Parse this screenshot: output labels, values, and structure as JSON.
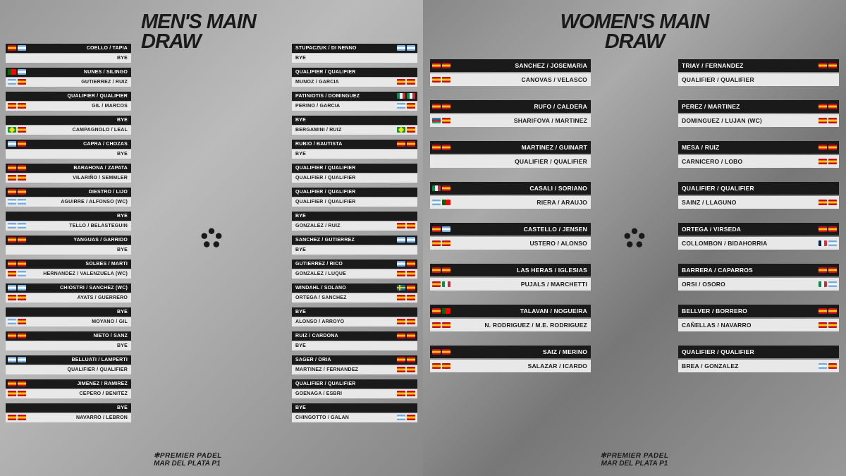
{
  "titles": {
    "men": "MEN'S MAIN\nDRAW",
    "women": "WOMEN'S MAIN DRAW"
  },
  "footer": {
    "brand": "✻PREMIER PADEL",
    "event": "MAR DEL PLATA P1"
  },
  "men_left": [
    [
      {
        "t": "COELLO / TAPIA",
        "f": [
          "es",
          "ar"
        ],
        "d": 1
      },
      {
        "t": "BYE",
        "d": 0
      }
    ],
    [
      {
        "t": "NUNES / SILINGO",
        "f": [
          "pt",
          "ar"
        ],
        "d": 1
      },
      {
        "t": "GUTIERREZ / RUIZ",
        "f": [
          "ar",
          "es"
        ],
        "d": 0
      }
    ],
    [
      {
        "t": "QUALIFIER / QUALIFIER",
        "d": 1
      },
      {
        "t": "GIL / MARCOS",
        "f": [
          "es",
          "es"
        ],
        "d": 0
      }
    ],
    [
      {
        "t": "BYE",
        "d": 1
      },
      {
        "t": "CAMPAGNOLO / LEAL",
        "f": [
          "br",
          "es"
        ],
        "d": 0
      }
    ],
    [
      {
        "t": "CAPRA / CHOZAS",
        "f": [
          "ar",
          "es"
        ],
        "d": 1
      },
      {
        "t": "BYE",
        "d": 0
      }
    ],
    [
      {
        "t": "BARAHONA / ZAPATA",
        "f": [
          "es",
          "es"
        ],
        "d": 1
      },
      {
        "t": "VILARIÑO / SEMMLER",
        "f": [
          "es",
          "es"
        ],
        "d": 0
      }
    ],
    [
      {
        "t": "DIESTRO / LIJO",
        "f": [
          "es",
          "es"
        ],
        "d": 1
      },
      {
        "t": "AGUIRRE / ALFONSO (WC)",
        "f": [
          "ar",
          "ar"
        ],
        "d": 0
      }
    ],
    [
      {
        "t": "BYE",
        "d": 1
      },
      {
        "t": "TELLO / BELASTEGUIN",
        "f": [
          "ar",
          "ar"
        ],
        "d": 0
      }
    ],
    [
      {
        "t": "YANGUAS / GARRIDO",
        "f": [
          "es",
          "es"
        ],
        "d": 1
      },
      {
        "t": "BYE",
        "d": 0
      }
    ],
    [
      {
        "t": "SOLBES / MARTI",
        "f": [
          "es",
          "es"
        ],
        "d": 1
      },
      {
        "t": "HERNANDEZ / VALENZUELA (WC)",
        "f": [
          "es",
          "ar"
        ],
        "d": 0
      }
    ],
    [
      {
        "t": "CHIOSTRI / SANCHEZ (WC)",
        "f": [
          "ar",
          "ar"
        ],
        "d": 1
      },
      {
        "t": "AYATS / GUERRERO",
        "f": [
          "es",
          "es"
        ],
        "d": 0
      }
    ],
    [
      {
        "t": "BYE",
        "d": 1
      },
      {
        "t": "MOYANO / GIL",
        "f": [
          "ar",
          "es"
        ],
        "d": 0
      }
    ],
    [
      {
        "t": "NIETO / SANZ",
        "f": [
          "es",
          "es"
        ],
        "d": 1
      },
      {
        "t": "BYE",
        "d": 0
      }
    ],
    [
      {
        "t": "BELLUATI / LAMPERTI",
        "f": [
          "ar",
          "ar"
        ],
        "d": 1
      },
      {
        "t": "QUALIFIER / QUALIFIER",
        "d": 0
      }
    ],
    [
      {
        "t": "JIMENEZ / RAMIREZ",
        "f": [
          "es",
          "es"
        ],
        "d": 1
      },
      {
        "t": "CEPERO / BENITEZ",
        "f": [
          "es",
          "es"
        ],
        "d": 0
      }
    ],
    [
      {
        "t": "BYE",
        "d": 1
      },
      {
        "t": "NAVARRO / LEBRON",
        "f": [
          "es",
          "es"
        ],
        "d": 0
      }
    ]
  ],
  "men_right": [
    [
      {
        "t": "STUPACZUK / DI NENNO",
        "f": [
          "ar",
          "ar"
        ],
        "d": 1
      },
      {
        "t": "BYE",
        "d": 0
      }
    ],
    [
      {
        "t": "QUALIFIER / QUALIFIER",
        "d": 1
      },
      {
        "t": "MUNOZ / GARCIA",
        "f": [
          "es",
          "es"
        ],
        "d": 0
      }
    ],
    [
      {
        "t": "PATINIOTIS / DOMINGUEZ",
        "f": [
          "it",
          "it"
        ],
        "d": 1
      },
      {
        "t": "PERINO / GARCIA",
        "f": [
          "ar",
          "es"
        ],
        "d": 0
      }
    ],
    [
      {
        "t": "BYE",
        "d": 1
      },
      {
        "t": "BERGAMINI / RUIZ",
        "f": [
          "br",
          "es"
        ],
        "d": 0
      }
    ],
    [
      {
        "t": "RUBIO / BAUTISTA",
        "f": [
          "es",
          "es"
        ],
        "d": 1
      },
      {
        "t": "BYE",
        "d": 0
      }
    ],
    [
      {
        "t": "QUALIFIER / QUALIFIER",
        "d": 1
      },
      {
        "t": "QUALIFIER / QUALIFIER",
        "d": 0
      }
    ],
    [
      {
        "t": "QUALIFIER / QUALIFIER",
        "d": 1
      },
      {
        "t": "QUALIFIER / QUALIFIER",
        "d": 0
      }
    ],
    [
      {
        "t": "BYE",
        "d": 1
      },
      {
        "t": "GONZALEZ / RUIZ",
        "f": [
          "es",
          "es"
        ],
        "d": 0
      }
    ],
    [
      {
        "t": "SANCHEZ / GUTIERREZ",
        "f": [
          "ar",
          "ar"
        ],
        "d": 1
      },
      {
        "t": "BYE",
        "d": 0
      }
    ],
    [
      {
        "t": "GUTIERREZ / RICO",
        "f": [
          "ar",
          "es"
        ],
        "d": 1
      },
      {
        "t": "GONZALEZ / LUQUE",
        "f": [
          "es",
          "es"
        ],
        "d": 0
      }
    ],
    [
      {
        "t": "WINDAHL / SOLANO",
        "f": [
          "se",
          "es"
        ],
        "d": 1
      },
      {
        "t": "ORTEGA / SANCHEZ",
        "f": [
          "es",
          "es"
        ],
        "d": 0
      }
    ],
    [
      {
        "t": "BYE",
        "d": 1
      },
      {
        "t": "ALONSO / ARROYO",
        "f": [
          "es",
          "es"
        ],
        "d": 0
      }
    ],
    [
      {
        "t": "RUIZ / CARDONA",
        "f": [
          "es",
          "es"
        ],
        "d": 1
      },
      {
        "t": "BYE",
        "d": 0
      }
    ],
    [
      {
        "t": "SAGER / ORIA",
        "f": [
          "es",
          "es"
        ],
        "d": 1
      },
      {
        "t": "MARTINEZ / FERNANDEZ",
        "f": [
          "es",
          "es"
        ],
        "d": 0
      }
    ],
    [
      {
        "t": "QUALIFIER / QUALIFIER",
        "d": 1
      },
      {
        "t": "GOENAGA / ESBRI",
        "f": [
          "es",
          "es"
        ],
        "d": 0
      }
    ],
    [
      {
        "t": "BYE",
        "d": 1
      },
      {
        "t": "CHINGOTTO / GALAN",
        "f": [
          "ar",
          "es"
        ],
        "d": 0
      }
    ]
  ],
  "women_left": [
    [
      {
        "t": "SANCHEZ / JOSEMARIA",
        "f": [
          "es",
          "es"
        ],
        "d": 1
      },
      {
        "t": "CANOVAS / VELASCO",
        "f": [
          "es",
          "es"
        ],
        "d": 0
      }
    ],
    [
      {
        "t": "RUFO / CALDERA",
        "f": [
          "es",
          "es"
        ],
        "d": 1
      },
      {
        "t": "SHARIFOVA / MARTINEZ",
        "f": [
          "az",
          "es"
        ],
        "d": 0
      }
    ],
    [
      {
        "t": "MARTINEZ / GUINART",
        "f": [
          "es",
          "es"
        ],
        "d": 1
      },
      {
        "t": "QUALIFIER / QUALIFIER",
        "d": 0
      }
    ],
    [
      {
        "t": "CASALI / SORIANO",
        "f": [
          "it",
          "es"
        ],
        "d": 1
      },
      {
        "t": "RIERA / ARAUJO",
        "f": [
          "ar",
          "pt"
        ],
        "d": 0
      }
    ],
    [
      {
        "t": "CASTELLO / JENSEN",
        "f": [
          "es",
          "ar"
        ],
        "d": 1
      },
      {
        "t": "USTERO / ALONSO",
        "f": [
          "es",
          "es"
        ],
        "d": 0
      }
    ],
    [
      {
        "t": "LAS HERAS / IGLESIAS",
        "f": [
          "es",
          "es"
        ],
        "d": 1
      },
      {
        "t": "PUJALS / MARCHETTI",
        "f": [
          "es",
          "it"
        ],
        "d": 0
      }
    ],
    [
      {
        "t": "TALAVAN / NOGUEIRA",
        "f": [
          "es",
          "pt"
        ],
        "d": 1
      },
      {
        "t": "N. RODRIGUEZ / M.E. RODRIGUEZ",
        "f": [
          "es",
          "es"
        ],
        "d": 0
      }
    ],
    [
      {
        "t": "SAIZ / MERINO",
        "f": [
          "es",
          "es"
        ],
        "d": 1
      },
      {
        "t": "SALAZAR / ICARDO",
        "f": [
          "es",
          "es"
        ],
        "d": 0
      }
    ]
  ],
  "women_right": [
    [
      {
        "t": "TRIAY / FERNANDEZ",
        "f": [
          "es",
          "es"
        ],
        "d": 1
      },
      {
        "t": "QUALIFIER / QUALIFIER",
        "d": 0
      }
    ],
    [
      {
        "t": "PEREZ / MARTINEZ",
        "f": [
          "es",
          "es"
        ],
        "d": 1
      },
      {
        "t": "DOMINGUEZ / LUJAN (WC)",
        "f": [
          "es",
          "es"
        ],
        "d": 0
      }
    ],
    [
      {
        "t": "MESA / RUIZ",
        "f": [
          "es",
          "es"
        ],
        "d": 1
      },
      {
        "t": "CARNICERO / LOBO",
        "f": [
          "es",
          "es"
        ],
        "d": 0
      }
    ],
    [
      {
        "t": "QUALIFIER / QUALIFIER",
        "d": 1
      },
      {
        "t": "SAINZ / LLAGUNO",
        "f": [
          "es",
          "es"
        ],
        "d": 0
      }
    ],
    [
      {
        "t": "ORTEGA / VIRSEDA",
        "f": [
          "es",
          "es"
        ],
        "d": 1
      },
      {
        "t": "COLLOMBON / BIDAHORRIA",
        "f": [
          "fr",
          "ar"
        ],
        "d": 0
      }
    ],
    [
      {
        "t": "BARRERA / CAPARROS",
        "f": [
          "es",
          "es"
        ],
        "d": 1
      },
      {
        "t": "ORSI / OSORO",
        "f": [
          "it",
          "ar"
        ],
        "d": 0
      }
    ],
    [
      {
        "t": "BELLVER / BORRERO",
        "f": [
          "es",
          "es"
        ],
        "d": 1
      },
      {
        "t": "CAÑELLAS / NAVARRO",
        "f": [
          "es",
          "es"
        ],
        "d": 0
      }
    ],
    [
      {
        "t": "QUALIFIER / QUALIFIER",
        "d": 1
      },
      {
        "t": "BREA / GONZALEZ",
        "f": [
          "ar",
          "es"
        ],
        "d": 0
      }
    ]
  ]
}
